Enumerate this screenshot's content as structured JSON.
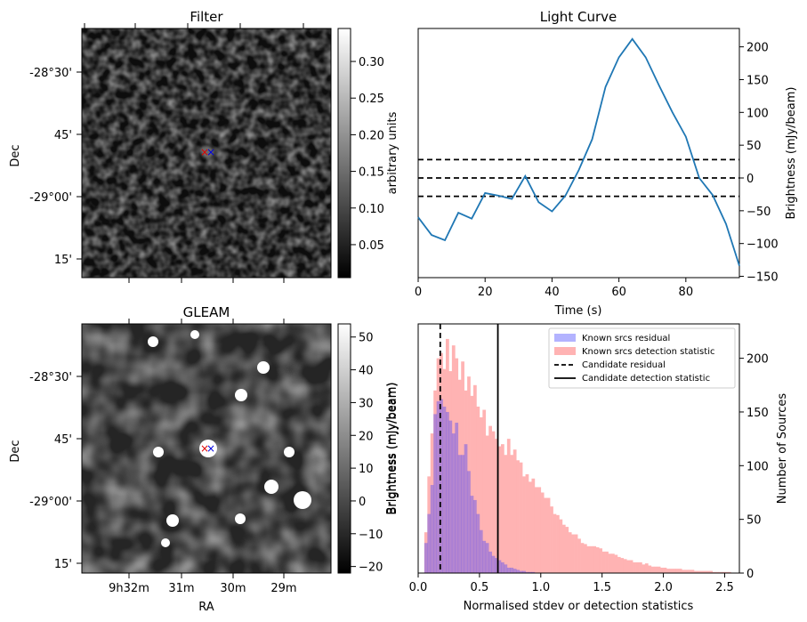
{
  "titles": {
    "filter": "Filter",
    "gleam": "GLEAM",
    "lightcurve": "Light Curve"
  },
  "image_axes": {
    "dec_label": "Dec",
    "ra_label": "RA",
    "dec_ticks": [
      "-28°30'",
      "45'",
      "-29°00'",
      "15'"
    ],
    "ra_ticks": [
      "9h32m",
      "31m",
      "30m",
      "29m"
    ]
  },
  "colorbars": {
    "filter": {
      "label": "arbitrary units",
      "ticks": [
        0.05,
        0.1,
        0.15,
        0.2,
        0.25,
        0.3
      ],
      "range": [
        0.005,
        0.345
      ]
    },
    "gleam": {
      "label": "Brightness (mJy/beam)",
      "ticks": [
        -20,
        -10,
        0,
        10,
        20,
        30,
        40,
        50
      ],
      "range": [
        -22,
        54
      ]
    }
  },
  "markers": {
    "red": "×",
    "blue": "×"
  },
  "colors": {
    "line": "#1f77b4",
    "known_residual": "#b3b3ff",
    "known_detection": "#ffb3b3",
    "overlap": "#c877b3"
  },
  "chart_data": [
    {
      "type": "line",
      "title": "Light Curve",
      "xlabel": "Time (s)",
      "ylabel": "Brightness (mJy/beam)",
      "xlim": [
        0,
        96
      ],
      "ylim": [
        -152,
        228
      ],
      "x_ticks": [
        0,
        20,
        40,
        60,
        80
      ],
      "y_ticks": [
        -150,
        -100,
        -50,
        0,
        50,
        100,
        150,
        200
      ],
      "x": [
        0,
        4,
        8,
        12,
        16,
        20,
        24,
        28,
        32,
        36,
        40,
        44,
        48,
        52,
        56,
        60,
        64,
        68,
        72,
        76,
        80,
        84,
        88,
        92,
        96
      ],
      "y": [
        -60,
        -87,
        -95,
        -53,
        -62,
        -23,
        -27,
        -32,
        3,
        -37,
        -51,
        -27,
        12,
        59,
        139,
        184,
        212,
        184,
        141,
        100,
        63,
        0,
        -26,
        -70,
        -134
      ],
      "hlines": [
        28,
        0,
        -28
      ]
    },
    {
      "type": "bar",
      "xlabel": "Normalised stdev or detection statistics",
      "ylabel": "Number of Sources",
      "y2label": "Brightness (mJy/beam)",
      "xlim": [
        0,
        2.62
      ],
      "ylim": [
        0,
        232
      ],
      "x_ticks": [
        0.0,
        0.5,
        1.0,
        1.5,
        2.0,
        2.5
      ],
      "x_tick_labels": [
        "0.0",
        "0.5",
        "1.0",
        "1.5",
        "2.0",
        "2.5"
      ],
      "y_ticks": [
        0,
        50,
        100,
        150,
        200
      ],
      "bin_width": 0.025,
      "residual_start": 0.05,
      "residual_values": [
        28,
        55,
        82,
        148,
        160,
        162,
        155,
        150,
        142,
        130,
        140,
        110,
        110,
        120,
        95,
        72,
        68,
        55,
        40,
        30,
        28,
        20,
        16,
        14,
        12,
        10,
        8,
        5,
        5,
        4,
        3,
        2,
        2,
        1,
        1,
        1
      ],
      "detection_start": 0.05,
      "detection_values": [
        38,
        90,
        130,
        170,
        200,
        205,
        190,
        218,
        188,
        212,
        200,
        180,
        197,
        170,
        183,
        165,
        175,
        155,
        145,
        152,
        128,
        137,
        132,
        125,
        118,
        120,
        110,
        125,
        110,
        115,
        105,
        103,
        90,
        92,
        85,
        88,
        80,
        80,
        75,
        70,
        70,
        62,
        55,
        54,
        50,
        45,
        43,
        38,
        36,
        36,
        32,
        28,
        27,
        25,
        25,
        25,
        24,
        23,
        20,
        20,
        18,
        18,
        17,
        15,
        14,
        13,
        12,
        12,
        10,
        10,
        10,
        8,
        9,
        7,
        6,
        6,
        6,
        5,
        5,
        4,
        4,
        4,
        4,
        4,
        3,
        3,
        3,
        3,
        2,
        2,
        2,
        2,
        2,
        2,
        1,
        1,
        1,
        1,
        1,
        1
      ],
      "candidate_residual": 0.18,
      "candidate_detection": 0.65,
      "legend": [
        "Known srcs residual",
        "Known srcs detection statistic",
        "Candidate residual",
        "Candidate detection statistic"
      ]
    }
  ]
}
